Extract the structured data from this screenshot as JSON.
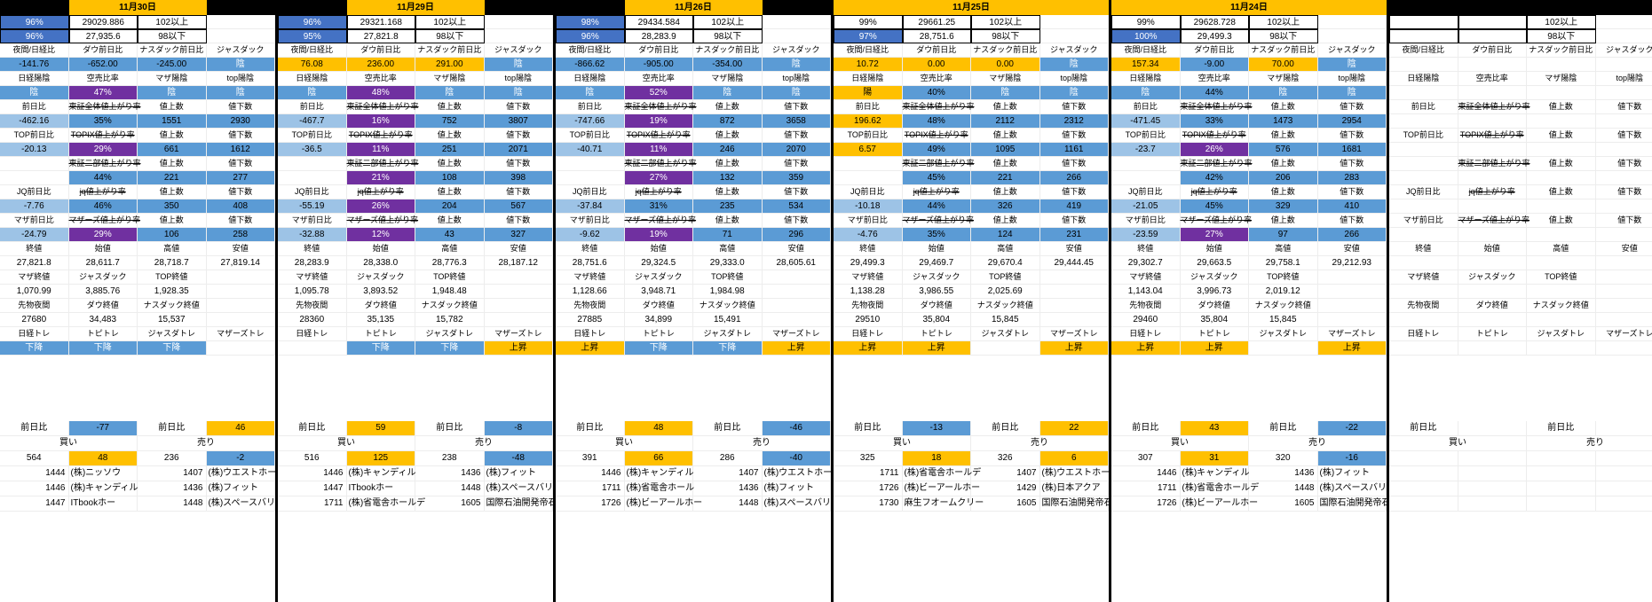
{
  "palette": {
    "background": "#ffffff",
    "header_band": "#000000",
    "accent_yellow": "#ffc000",
    "cell_blue": "#5b9bd5",
    "cell_light_blue": "#9dc3e6",
    "cell_navy": "#4472c4",
    "cell_purple": "#7030a0",
    "grid_line": "#ededed",
    "group_border": "#000000"
  },
  "header_labels": {
    "r4": [
      "夜間/日経比",
      "ダウ前日比",
      "ナスダック前日比",
      "ジャスダック"
    ],
    "r6": [
      "日経陽陰",
      "空売比率",
      "マザ陽陰",
      "top陽陰"
    ],
    "r8": [
      "前日比",
      "東証全体値上がり率",
      "値上数",
      "値下数"
    ],
    "r10": [
      "TOP前日比",
      "TOPIX値上がり率",
      "値上数",
      "値下数"
    ],
    "r12": [
      "",
      "東証二部値上がり率",
      "値上数",
      "値下数"
    ],
    "r14": [
      "JQ前日比",
      "jq値上がり率",
      "値上数",
      "値下数"
    ],
    "r16": [
      "マザ前日比",
      "マザーズ値上がり率",
      "値上数",
      "値下数"
    ],
    "r18": [
      "終値",
      "始値",
      "高値",
      "安値"
    ],
    "r20": [
      "マザ終値",
      "ジャスダック",
      "TOP終値",
      ""
    ],
    "r22": [
      "先物夜間",
      "ダウ終値",
      "ナスダック終値",
      ""
    ],
    "r24": [
      "日経トレ",
      "トピトレ",
      "ジャスダトレ",
      "マザーズトレ"
    ],
    "upper_threshold_label": "102以上",
    "lower_threshold_label": "98以下",
    "bottom_diff_label": "前日比",
    "buy_label": "買い",
    "sell_label": "売り"
  },
  "groups": [
    {
      "date": "11月30日",
      "date_full_width": false,
      "upper": {
        "pct": "96%",
        "shaded": true,
        "value": "29029.886"
      },
      "lower": {
        "pct": "96%",
        "shaded": true,
        "value": "27,935.6"
      },
      "night_row": [
        "-141.76",
        "-652.00",
        "-245.00",
        "陰"
      ],
      "sentiment_row": [
        "陰",
        "47%",
        "陰",
        "陰"
      ],
      "sections": [
        {
          "diff": "-462.16",
          "ratio": "35%",
          "up": "1551",
          "down": "2930"
        },
        {
          "diff": "-20.13",
          "ratio": "29%",
          "up": "661",
          "down": "1612"
        },
        {
          "diff": "",
          "ratio": "44%",
          "up": "221",
          "down": "277"
        },
        {
          "diff": "-7.76",
          "ratio": "46%",
          "up": "350",
          "down": "408"
        },
        {
          "diff": "-24.79",
          "ratio": "29%",
          "up": "106",
          "down": "258"
        }
      ],
      "ohlc": [
        "27,821.8",
        "28,611.7",
        "28,718.7",
        "27,819.14"
      ],
      "closes2": [
        "1,070.99",
        "3,885.76",
        "1,928.35",
        ""
      ],
      "closes3": [
        "27680",
        "34,483",
        "15,537",
        ""
      ],
      "trends": [
        "下降",
        "下降",
        "下降",
        ""
      ],
      "diff_pair": [
        "-77",
        "46"
      ],
      "counts": [
        "564",
        "48",
        "236",
        "-2"
      ],
      "stocks": [
        [
          "1444",
          "(株)ニッソウ",
          "1407",
          "(株)ウエストホー"
        ],
        [
          "1446",
          "(株)キャンディル",
          "1436",
          "(株)フィット"
        ],
        [
          "1447",
          "ITbookホー",
          "1448",
          "(株)スペースバリ"
        ]
      ]
    },
    {
      "date": "11月29日",
      "date_full_width": false,
      "upper": {
        "pct": "96%",
        "shaded": true,
        "value": "29321.168"
      },
      "lower": {
        "pct": "95%",
        "shaded": true,
        "value": "27,821.8"
      },
      "night_row": [
        "76.08",
        "236.00",
        "291.00",
        "陰"
      ],
      "sentiment_row": [
        "陰",
        "48%",
        "陰",
        "陰"
      ],
      "sections": [
        {
          "diff": "-467.7",
          "ratio": "16%",
          "up": "752",
          "down": "3807"
        },
        {
          "diff": "-36.5",
          "ratio": "11%",
          "up": "251",
          "down": "2071"
        },
        {
          "diff": "",
          "ratio": "21%",
          "up": "108",
          "down": "398"
        },
        {
          "diff": "-55.19",
          "ratio": "26%",
          "up": "204",
          "down": "567"
        },
        {
          "diff": "-32.88",
          "ratio": "12%",
          "up": "43",
          "down": "327"
        }
      ],
      "ohlc": [
        "28,283.9",
        "28,338.0",
        "28,776.3",
        "28,187.12"
      ],
      "closes2": [
        "1,095.78",
        "3,893.52",
        "1,948.48",
        ""
      ],
      "closes3": [
        "28360",
        "35,135",
        "15,782",
        ""
      ],
      "trends": [
        "",
        "下降",
        "下降",
        "上昇"
      ],
      "diff_pair": [
        "59",
        "-8"
      ],
      "counts": [
        "516",
        "125",
        "238",
        "-48"
      ],
      "stocks": [
        [
          "1446",
          "(株)キャンディル",
          "1436",
          "(株)フィット"
        ],
        [
          "1447",
          "ITbookホー",
          "1448",
          "(株)スペースバリ"
        ],
        [
          "1711",
          "(株)省電舎ホールデ",
          "1605",
          "国際石油開発帝石"
        ]
      ]
    },
    {
      "date": "11月26日",
      "date_full_width": false,
      "upper": {
        "pct": "98%",
        "shaded": true,
        "value": "29434.584"
      },
      "lower": {
        "pct": "96%",
        "shaded": true,
        "value": "28,283.9"
      },
      "night_row": [
        "-866.62",
        "-905.00",
        "-354.00",
        "陰"
      ],
      "sentiment_row": [
        "陰",
        "52%",
        "陰",
        "陰"
      ],
      "sections": [
        {
          "diff": "-747.66",
          "ratio": "19%",
          "up": "872",
          "down": "3658"
        },
        {
          "diff": "-40.71",
          "ratio": "11%",
          "up": "246",
          "down": "2070"
        },
        {
          "diff": "",
          "ratio": "27%",
          "up": "132",
          "down": "359"
        },
        {
          "diff": "-37.84",
          "ratio": "31%",
          "up": "235",
          "down": "534"
        },
        {
          "diff": "-9.62",
          "ratio": "19%",
          "up": "71",
          "down": "296"
        }
      ],
      "ohlc": [
        "28,751.6",
        "29,324.5",
        "29,333.0",
        "28,605.61"
      ],
      "closes2": [
        "1,128.66",
        "3,948.71",
        "1,984.98",
        ""
      ],
      "closes3": [
        "27885",
        "34,899",
        "15,491",
        ""
      ],
      "trends": [
        "上昇",
        "下降",
        "下降",
        "上昇"
      ],
      "diff_pair": [
        "48",
        "-46"
      ],
      "counts": [
        "391",
        "66",
        "286",
        "-40"
      ],
      "stocks": [
        [
          "1446",
          "(株)キャンディル",
          "1407",
          "(株)ウエストホー"
        ],
        [
          "1711",
          "(株)省電舎ホール",
          "1436",
          "(株)フィット"
        ],
        [
          "1726",
          "(株)ビーアールホー",
          "1448",
          "(株)スペースバリ"
        ]
      ]
    },
    {
      "date": "11月25日",
      "date_full_width": true,
      "upper": {
        "pct": "99%",
        "shaded": false,
        "value": "29661.25"
      },
      "lower": {
        "pct": "97%",
        "shaded": true,
        "value": "28,751.6"
      },
      "night_row": [
        "10.72",
        "0.00",
        "0.00",
        "陰"
      ],
      "sentiment_row": [
        "陽",
        "40%",
        "陰",
        "陰"
      ],
      "sections": [
        {
          "diff": "196.62",
          "ratio": "48%",
          "up": "2112",
          "down": "2312"
        },
        {
          "diff": "6.57",
          "ratio": "49%",
          "up": "1095",
          "down": "1161"
        },
        {
          "diff": "",
          "ratio": "45%",
          "up": "221",
          "down": "266"
        },
        {
          "diff": "-10.18",
          "ratio": "44%",
          "up": "326",
          "down": "419"
        },
        {
          "diff": "-4.76",
          "ratio": "35%",
          "up": "124",
          "down": "231"
        }
      ],
      "ohlc": [
        "29,499.3",
        "29,469.7",
        "29,670.4",
        "29,444.45"
      ],
      "closes2": [
        "1,138.28",
        "3,986.55",
        "2,025.69",
        ""
      ],
      "closes3": [
        "29510",
        "35,804",
        "15,845",
        ""
      ],
      "trends": [
        "上昇",
        "上昇",
        "",
        "上昇"
      ],
      "diff_pair": [
        "-13",
        "22"
      ],
      "counts": [
        "325",
        "18",
        "326",
        "6"
      ],
      "stocks": [
        [
          "1711",
          "(株)省電舎ホールデ",
          "1407",
          "(株)ウエストホー"
        ],
        [
          "1726",
          "(株)ビーアールホー",
          "1429",
          "(株)日本アクア"
        ],
        [
          "1730",
          "麻生フオームクリー",
          "1605",
          "国際石油開発帝石"
        ]
      ]
    },
    {
      "date": "11月24日",
      "date_full_width": true,
      "upper": {
        "pct": "99%",
        "shaded": false,
        "value": "29628.728"
      },
      "lower": {
        "pct": "100%",
        "shaded": true,
        "value": "29,499.3"
      },
      "night_row": [
        "157.34",
        "-9.00",
        "70.00",
        "陰"
      ],
      "sentiment_row": [
        "陰",
        "44%",
        "陰",
        "陰"
      ],
      "sections": [
        {
          "diff": "-471.45",
          "ratio": "33%",
          "up": "1473",
          "down": "2954"
        },
        {
          "diff": "-23.7",
          "ratio": "26%",
          "up": "576",
          "down": "1681"
        },
        {
          "diff": "",
          "ratio": "42%",
          "up": "206",
          "down": "283"
        },
        {
          "diff": "-21.05",
          "ratio": "45%",
          "up": "329",
          "down": "410"
        },
        {
          "diff": "-23.59",
          "ratio": "27%",
          "up": "97",
          "down": "266"
        }
      ],
      "ohlc": [
        "29,302.7",
        "29,663.5",
        "29,758.1",
        "29,212.93"
      ],
      "closes2": [
        "1,143.04",
        "3,996.73",
        "2,019.12",
        ""
      ],
      "closes3": [
        "29460",
        "35,804",
        "15,845",
        ""
      ],
      "trends": [
        "上昇",
        "上昇",
        "",
        "上昇"
      ],
      "diff_pair": [
        "43",
        "-22"
      ],
      "counts": [
        "307",
        "31",
        "320",
        "-16"
      ],
      "stocks": [
        [
          "1446",
          "(株)キャンディル",
          "1436",
          "(株)フィット"
        ],
        [
          "1711",
          "(株)省電舎ホールデ",
          "1448",
          "(株)スペースバリ"
        ],
        [
          "1726",
          "(株)ビーアールホー",
          "1605",
          "国際石油開発帝石"
        ]
      ]
    },
    {
      "date": "",
      "date_full_width": false,
      "partial": true,
      "upper": {
        "pct": "",
        "shaded": false,
        "value": ""
      },
      "lower": {
        "pct": "",
        "shaded": false,
        "value": ""
      },
      "night_row": [
        "",
        "",
        "",
        ""
      ],
      "sentiment_row": [
        "",
        "",
        "",
        ""
      ],
      "sections": [
        {
          "diff": "",
          "ratio": "",
          "up": "",
          "down": ""
        },
        {
          "diff": "",
          "ratio": "",
          "up": "",
          "down": ""
        },
        {
          "diff": "",
          "ratio": "",
          "up": "",
          "down": ""
        },
        {
          "diff": "",
          "ratio": "",
          "up": "",
          "down": ""
        },
        {
          "diff": "",
          "ratio": "",
          "up": "",
          "down": ""
        }
      ],
      "ohlc": [
        "",
        "",
        "",
        ""
      ],
      "closes2": [
        "",
        "",
        "",
        ""
      ],
      "closes3": [
        "",
        "",
        "",
        ""
      ],
      "trends": [
        "",
        "",
        "",
        ""
      ],
      "diff_pair": [
        "",
        ""
      ],
      "counts": [
        "",
        "",
        "",
        ""
      ],
      "stocks": [
        [
          "",
          "",
          "",
          ""
        ],
        [
          "",
          "",
          "",
          ""
        ],
        [
          "",
          "",
          "",
          ""
        ]
      ]
    }
  ]
}
